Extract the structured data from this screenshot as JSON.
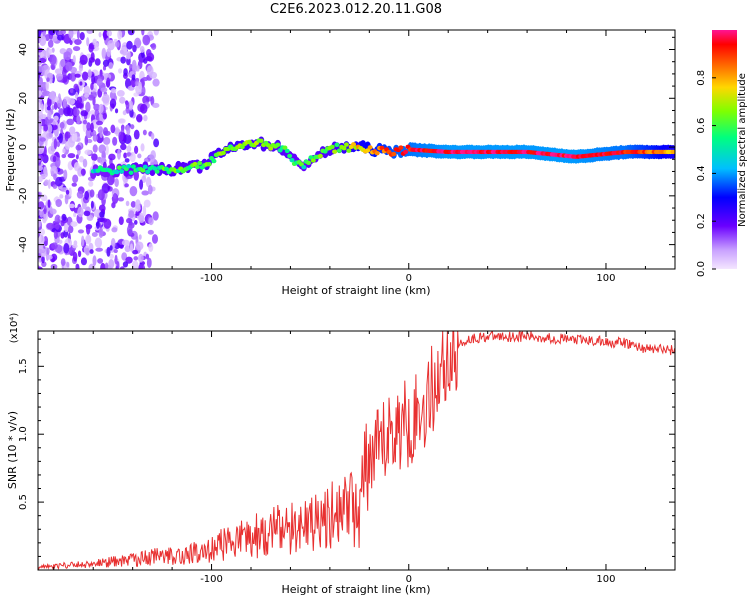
{
  "title": "C2E6.2023.012.20.11.G08",
  "chart_data": [
    {
      "type": "heatmap",
      "xlabel": "Height of straight line (km)",
      "ylabel": "Frequency (Hz)",
      "xlim": [
        -188,
        135
      ],
      "ylim": [
        -50,
        48
      ],
      "xticks": [
        -100,
        0,
        100
      ],
      "xtick_labels": [
        "-100",
        "0",
        "100"
      ],
      "yticks": [
        -40,
        -20,
        0,
        20,
        40
      ],
      "ytick_labels": [
        "-40",
        "-20",
        "0",
        "20",
        "40"
      ],
      "colorbar": {
        "label": "Normalized spectral amplitude",
        "range": [
          0,
          1
        ],
        "ticks": [
          0.0,
          0.2,
          0.4,
          0.6,
          0.8
        ],
        "tick_labels": [
          "0.0",
          "0.2",
          "0.4",
          "0.6",
          "0.8"
        ],
        "colors": [
          "#f4e6ff",
          "#c8a0ff",
          "#6a00ff",
          "#0000ff",
          "#00bfff",
          "#00ff7f",
          "#7fff00",
          "#ffd700",
          "#ff6000",
          "#ff0000",
          "#ff1493"
        ]
      },
      "trace": {
        "description": "main spectral ridge",
        "points": [
          {
            "x": -160,
            "y": -10,
            "amp": 0.45
          },
          {
            "x": -140,
            "y": -9,
            "amp": 0.5
          },
          {
            "x": -120,
            "y": -9,
            "amp": 0.55
          },
          {
            "x": -105,
            "y": -8,
            "amp": 0.55
          },
          {
            "x": -95,
            "y": -2,
            "amp": 0.6
          },
          {
            "x": -80,
            "y": 2,
            "amp": 0.6
          },
          {
            "x": -65,
            "y": 0,
            "amp": 0.55
          },
          {
            "x": -55,
            "y": -8,
            "amp": 0.5
          },
          {
            "x": -45,
            "y": -3,
            "amp": 0.55
          },
          {
            "x": -35,
            "y": 0,
            "amp": 0.6
          },
          {
            "x": -25,
            "y": 0,
            "amp": 0.7
          },
          {
            "x": -10,
            "y": -2,
            "amp": 0.85
          },
          {
            "x": 0,
            "y": -1,
            "amp": 0.9
          },
          {
            "x": 20,
            "y": -2,
            "amp": 0.95
          },
          {
            "x": 60,
            "y": -2,
            "amp": 0.95
          },
          {
            "x": 85,
            "y": -4,
            "amp": 0.95
          },
          {
            "x": 110,
            "y": -2,
            "amp": 0.9
          },
          {
            "x": 135,
            "y": -2,
            "amp": 0.7
          }
        ]
      }
    },
    {
      "type": "line",
      "xlabel": "Height of straight line (km)",
      "ylabel": "SNR (10 * v/v)",
      "y_multiplier": "(x10⁴)",
      "xlim": [
        -188,
        135
      ],
      "ylim": [
        0.0,
        1.76
      ],
      "xticks": [
        -100,
        0,
        100
      ],
      "xtick_labels": [
        "-100",
        "0",
        "100"
      ],
      "yticks": [
        0.5,
        1.0,
        1.5
      ],
      "ytick_labels": [
        "0.5",
        "1.0",
        "1.5"
      ],
      "series": [
        {
          "color": "#e83030",
          "x": [
            -188,
            -170,
            -150,
            -130,
            -110,
            -100,
            -90,
            -80,
            -70,
            -60,
            -50,
            -40,
            -30,
            -25,
            -20,
            -15,
            -10,
            -5,
            0,
            5,
            10,
            15,
            20,
            25,
            30,
            40,
            50,
            60,
            70,
            80,
            90,
            100,
            110,
            120,
            135
          ],
          "y": [
            0.02,
            0.03,
            0.05,
            0.08,
            0.1,
            0.13,
            0.18,
            0.2,
            0.24,
            0.25,
            0.3,
            0.35,
            0.4,
            0.3,
            0.75,
            0.85,
            1.0,
            1.05,
            1.1,
            1.15,
            1.25,
            1.45,
            1.55,
            1.65,
            1.7,
            1.72,
            1.72,
            1.72,
            1.71,
            1.7,
            1.69,
            1.68,
            1.67,
            1.63,
            1.62
          ]
        }
      ]
    }
  ]
}
